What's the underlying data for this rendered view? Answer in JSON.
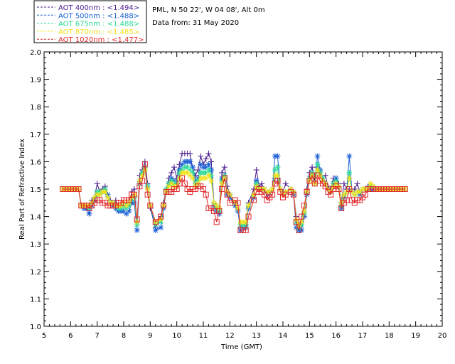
{
  "header": {
    "location": "PML, N 50 22', W 04 08', Alt 0m",
    "date_line": "Data from: 31 May 2020"
  },
  "chart_data": {
    "type": "line",
    "xlabel": "Time (GMT)",
    "ylabel": "Real Part of Refractive Index",
    "xlim": [
      5,
      20
    ],
    "ylim": [
      1.0,
      2.0
    ],
    "x_ticks": [
      "5",
      "6",
      "7",
      "8",
      "9",
      "10",
      "11",
      "12",
      "13",
      "14",
      "15",
      "16",
      "17",
      "18",
      "19",
      "20"
    ],
    "y_ticks": [
      "1.0",
      "1.1",
      "1.2",
      "1.3",
      "1.4",
      "1.5",
      "1.6",
      "1.7",
      "1.8",
      "1.9",
      "2.0"
    ],
    "x": [
      5.7,
      5.8,
      5.9,
      6.0,
      6.1,
      6.2,
      6.3,
      6.4,
      6.5,
      6.6,
      6.7,
      6.8,
      6.9,
      7.0,
      7.1,
      7.2,
      7.3,
      7.4,
      7.5,
      7.6,
      7.7,
      7.8,
      7.9,
      8.0,
      8.1,
      8.2,
      8.3,
      8.4,
      8.5,
      8.6,
      8.7,
      8.8,
      8.9,
      9.0,
      9.2,
      9.4,
      9.5,
      9.6,
      9.7,
      9.8,
      9.9,
      10.0,
      10.1,
      10.2,
      10.3,
      10.4,
      10.5,
      10.6,
      10.7,
      10.8,
      10.9,
      11.0,
      11.1,
      11.2,
      11.3,
      11.4,
      11.5,
      11.6,
      11.7,
      11.8,
      11.9,
      12.0,
      12.2,
      12.3,
      12.4,
      12.5,
      12.6,
      12.7,
      12.9,
      13.0,
      13.1,
      13.2,
      13.3,
      13.4,
      13.5,
      13.6,
      13.7,
      13.8,
      13.9,
      14.0,
      14.1,
      14.3,
      14.4,
      14.5,
      14.6,
      14.7,
      14.8,
      14.9,
      15.0,
      15.1,
      15.2,
      15.3,
      15.4,
      15.5,
      15.6,
      15.7,
      15.8,
      15.9,
      16.0,
      16.1,
      16.2,
      16.3,
      16.4,
      16.5,
      16.6,
      16.7,
      16.8,
      16.9,
      17.0,
      17.1,
      17.2,
      17.3,
      17.4,
      17.5,
      17.6,
      17.7,
      17.8,
      17.9,
      18.0,
      18.1,
      18.2,
      18.3,
      18.4,
      18.5,
      18.6
    ],
    "series": [
      {
        "name": "AOT  400nm : <1.494>",
        "color": "#4b1a8c",
        "marker": "plus",
        "values": [
          1.5,
          1.5,
          1.5,
          1.5,
          1.5,
          1.5,
          1.5,
          1.44,
          1.44,
          1.43,
          1.44,
          1.46,
          1.47,
          1.52,
          1.49,
          1.5,
          1.51,
          1.47,
          1.46,
          1.44,
          1.46,
          1.43,
          1.44,
          1.44,
          1.45,
          1.44,
          1.49,
          1.5,
          1.38,
          1.55,
          1.57,
          1.6,
          1.52,
          1.43,
          1.36,
          1.4,
          1.45,
          1.5,
          1.54,
          1.56,
          1.58,
          1.54,
          1.59,
          1.63,
          1.63,
          1.63,
          1.63,
          1.57,
          1.55,
          1.57,
          1.62,
          1.59,
          1.61,
          1.63,
          1.6,
          1.45,
          1.44,
          1.43,
          1.56,
          1.58,
          1.51,
          1.48,
          1.44,
          1.43,
          1.36,
          1.37,
          1.37,
          1.45,
          1.5,
          1.57,
          1.51,
          1.52,
          1.5,
          1.47,
          1.48,
          1.5,
          1.54,
          1.54,
          1.5,
          1.49,
          1.52,
          1.5,
          1.49,
          1.4,
          1.35,
          1.38,
          1.42,
          1.5,
          1.56,
          1.58,
          1.53,
          1.58,
          1.55,
          1.54,
          1.55,
          1.51,
          1.5,
          1.54,
          1.54,
          1.52,
          1.45,
          1.52,
          1.5,
          1.5,
          1.49,
          1.5,
          1.52,
          1.49,
          1.5,
          1.5,
          1.51,
          1.51,
          1.51,
          1.5,
          1.5,
          1.5,
          1.5,
          1.5,
          1.5,
          1.5,
          1.5,
          1.5,
          1.5,
          1.5,
          1.5
        ]
      },
      {
        "name": "AOT  500nm : <1.488>",
        "color": "#1a5fd6",
        "marker": "asterisk",
        "values": [
          1.5,
          1.5,
          1.5,
          1.5,
          1.5,
          1.5,
          1.5,
          1.44,
          1.43,
          1.43,
          1.41,
          1.44,
          1.46,
          1.48,
          1.48,
          1.49,
          1.49,
          1.48,
          1.45,
          1.44,
          1.43,
          1.42,
          1.42,
          1.42,
          1.41,
          1.42,
          1.45,
          1.45,
          1.35,
          1.52,
          1.56,
          1.57,
          1.51,
          1.44,
          1.35,
          1.36,
          1.43,
          1.49,
          1.52,
          1.54,
          1.53,
          1.52,
          1.57,
          1.59,
          1.6,
          1.6,
          1.6,
          1.58,
          1.53,
          1.54,
          1.59,
          1.58,
          1.58,
          1.59,
          1.57,
          1.44,
          1.42,
          1.41,
          1.54,
          1.55,
          1.48,
          1.47,
          1.44,
          1.42,
          1.35,
          1.36,
          1.36,
          1.43,
          1.47,
          1.53,
          1.5,
          1.5,
          1.5,
          1.49,
          1.49,
          1.5,
          1.62,
          1.62,
          1.5,
          1.48,
          1.49,
          1.5,
          1.48,
          1.36,
          1.35,
          1.35,
          1.4,
          1.48,
          1.54,
          1.56,
          1.52,
          1.62,
          1.57,
          1.54,
          1.52,
          1.5,
          1.49,
          1.52,
          1.54,
          1.51,
          1.43,
          1.47,
          1.49,
          1.62,
          1.49,
          1.48,
          1.49,
          1.48,
          1.5,
          1.5,
          1.5,
          1.5,
          1.5,
          1.5,
          1.5,
          1.5,
          1.5,
          1.5,
          1.5,
          1.5,
          1.5,
          1.5,
          1.5,
          1.5,
          1.5
        ]
      },
      {
        "name": "AOT  675nm : <1.488>",
        "color": "#2edb9a",
        "marker": "asterisk",
        "values": [
          1.5,
          1.5,
          1.5,
          1.5,
          1.5,
          1.5,
          1.5,
          1.44,
          1.44,
          1.44,
          1.43,
          1.45,
          1.47,
          1.49,
          1.49,
          1.49,
          1.5,
          1.47,
          1.45,
          1.45,
          1.44,
          1.43,
          1.43,
          1.44,
          1.43,
          1.44,
          1.46,
          1.47,
          1.37,
          1.53,
          1.56,
          1.58,
          1.51,
          1.44,
          1.37,
          1.38,
          1.44,
          1.5,
          1.52,
          1.53,
          1.52,
          1.52,
          1.56,
          1.57,
          1.58,
          1.58,
          1.57,
          1.56,
          1.52,
          1.53,
          1.56,
          1.56,
          1.56,
          1.57,
          1.55,
          1.45,
          1.43,
          1.42,
          1.53,
          1.55,
          1.49,
          1.48,
          1.45,
          1.43,
          1.37,
          1.37,
          1.37,
          1.44,
          1.48,
          1.52,
          1.5,
          1.5,
          1.5,
          1.49,
          1.49,
          1.5,
          1.57,
          1.58,
          1.5,
          1.48,
          1.49,
          1.5,
          1.49,
          1.38,
          1.36,
          1.37,
          1.41,
          1.49,
          1.54,
          1.56,
          1.52,
          1.59,
          1.56,
          1.54,
          1.52,
          1.5,
          1.49,
          1.52,
          1.53,
          1.51,
          1.44,
          1.48,
          1.49,
          1.56,
          1.49,
          1.48,
          1.49,
          1.49,
          1.5,
          1.5,
          1.5,
          1.51,
          1.51,
          1.5,
          1.5,
          1.5,
          1.5,
          1.5,
          1.5,
          1.5,
          1.5,
          1.5,
          1.5,
          1.5,
          1.5
        ]
      },
      {
        "name": "AOT  870nm : <1.485>",
        "color": "#f2e21c",
        "marker": "asterisk",
        "values": [
          1.5,
          1.5,
          1.5,
          1.5,
          1.5,
          1.5,
          1.5,
          1.44,
          1.44,
          1.44,
          1.44,
          1.45,
          1.47,
          1.48,
          1.48,
          1.49,
          1.49,
          1.47,
          1.45,
          1.45,
          1.44,
          1.44,
          1.44,
          1.45,
          1.44,
          1.45,
          1.47,
          1.48,
          1.38,
          1.53,
          1.55,
          1.57,
          1.5,
          1.44,
          1.38,
          1.39,
          1.44,
          1.49,
          1.51,
          1.52,
          1.51,
          1.51,
          1.54,
          1.56,
          1.56,
          1.56,
          1.55,
          1.54,
          1.51,
          1.52,
          1.54,
          1.54,
          1.54,
          1.55,
          1.53,
          1.45,
          1.44,
          1.43,
          1.52,
          1.54,
          1.49,
          1.48,
          1.45,
          1.43,
          1.38,
          1.38,
          1.38,
          1.44,
          1.48,
          1.51,
          1.5,
          1.5,
          1.5,
          1.49,
          1.49,
          1.5,
          1.55,
          1.55,
          1.5,
          1.48,
          1.49,
          1.5,
          1.49,
          1.39,
          1.37,
          1.38,
          1.42,
          1.49,
          1.53,
          1.55,
          1.52,
          1.57,
          1.55,
          1.53,
          1.52,
          1.5,
          1.49,
          1.51,
          1.52,
          1.51,
          1.45,
          1.48,
          1.49,
          1.54,
          1.49,
          1.48,
          1.49,
          1.49,
          1.5,
          1.5,
          1.5,
          1.52,
          1.51,
          1.5,
          1.5,
          1.5,
          1.5,
          1.5,
          1.5,
          1.5,
          1.5,
          1.5,
          1.5,
          1.5,
          1.5
        ]
      },
      {
        "name": "AOT 1020nm : <1.477>",
        "color": "#e0262b",
        "marker": "square",
        "values": [
          1.5,
          1.5,
          1.5,
          1.5,
          1.5,
          1.5,
          1.5,
          1.44,
          1.44,
          1.44,
          1.43,
          1.44,
          1.45,
          1.46,
          1.46,
          1.45,
          1.45,
          1.44,
          1.44,
          1.44,
          1.44,
          1.45,
          1.45,
          1.46,
          1.46,
          1.46,
          1.48,
          1.48,
          1.39,
          1.51,
          1.53,
          1.59,
          1.48,
          1.44,
          1.38,
          1.4,
          1.44,
          1.49,
          1.49,
          1.49,
          1.5,
          1.5,
          1.52,
          1.54,
          1.52,
          1.5,
          1.49,
          1.5,
          1.5,
          1.51,
          1.51,
          1.5,
          1.48,
          1.43,
          1.43,
          1.42,
          1.38,
          1.42,
          1.5,
          1.54,
          1.48,
          1.45,
          1.46,
          1.45,
          1.35,
          1.35,
          1.35,
          1.4,
          1.46,
          1.49,
          1.5,
          1.49,
          1.48,
          1.46,
          1.47,
          1.48,
          1.52,
          1.53,
          1.49,
          1.47,
          1.48,
          1.49,
          1.48,
          1.38,
          1.35,
          1.4,
          1.44,
          1.49,
          1.53,
          1.55,
          1.52,
          1.55,
          1.53,
          1.52,
          1.51,
          1.49,
          1.48,
          1.5,
          1.51,
          1.5,
          1.43,
          1.45,
          1.46,
          1.5,
          1.46,
          1.45,
          1.46,
          1.46,
          1.47,
          1.48,
          1.5,
          1.5,
          1.5,
          1.5,
          1.5,
          1.5,
          1.5,
          1.5,
          1.5,
          1.5,
          1.5,
          1.5,
          1.5,
          1.5,
          1.5
        ]
      }
    ],
    "legend_position": "top-left"
  }
}
